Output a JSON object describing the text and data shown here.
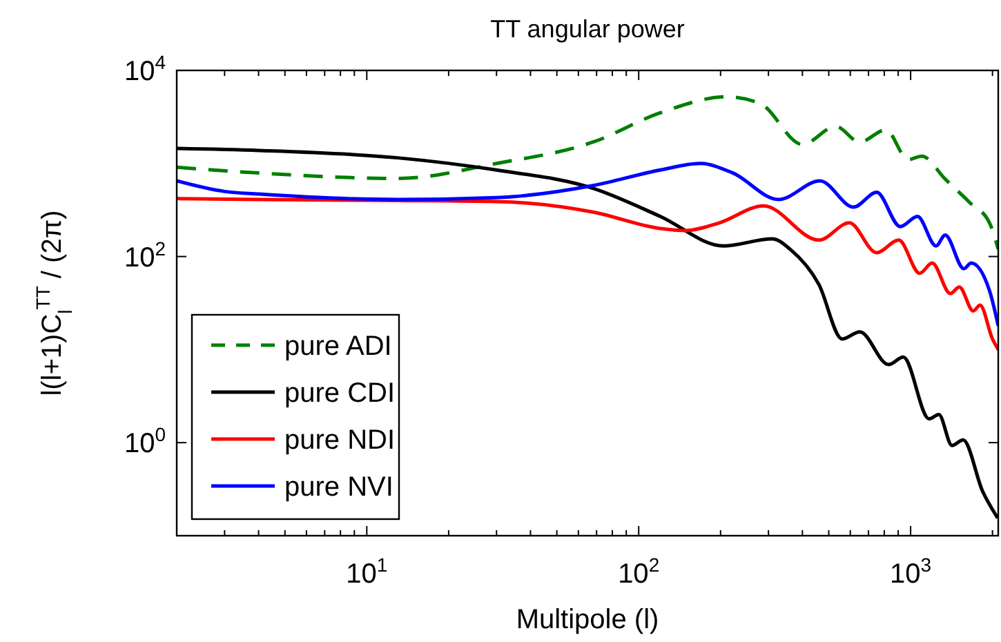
{
  "chart_data": {
    "type": "line",
    "title": "TT angular power",
    "xlabel": "Multipole (l)",
    "ylabel": "l(l+1)C$_{l}$$^{TT}$ / (2π)",
    "log": "xy",
    "grid": false,
    "legend": "bottom left",
    "marker": "none",
    "xlim": [
      2,
      2100
    ],
    "ylim": [
      0.1,
      10000
    ],
    "xticks": [
      {
        "value": 3,
        "label": null
      },
      {
        "value": 4,
        "label": null
      },
      {
        "value": 5,
        "label": null
      },
      {
        "value": 6,
        "label": null
      },
      {
        "value": 7,
        "label": null
      },
      {
        "value": 8,
        "label": null
      },
      {
        "value": 9,
        "label": null
      },
      {
        "value": 10,
        "label": "10$^{1}$"
      },
      {
        "value": 20,
        "label": null
      },
      {
        "value": 30,
        "label": null
      },
      {
        "value": 40,
        "label": null
      },
      {
        "value": 50,
        "label": null
      },
      {
        "value": 60,
        "label": null
      },
      {
        "value": 70,
        "label": null
      },
      {
        "value": 80,
        "label": null
      },
      {
        "value": 90,
        "label": null
      },
      {
        "value": 100,
        "label": "10$^{2}$"
      },
      {
        "value": 200,
        "label": null
      },
      {
        "value": 300,
        "label": null
      },
      {
        "value": 400,
        "label": null
      },
      {
        "value": 500,
        "label": null
      },
      {
        "value": 600,
        "label": null
      },
      {
        "value": 700,
        "label": null
      },
      {
        "value": 800,
        "label": null
      },
      {
        "value": 900,
        "label": null
      },
      {
        "value": 1000,
        "label": "10$^{3}$"
      },
      {
        "value": 2000,
        "label": null
      }
    ],
    "yticks": [
      {
        "value": 1,
        "label": "10$^{0}$"
      },
      {
        "value": 100,
        "label": "10$^{2}$"
      },
      {
        "value": 10000,
        "label": "10$^{4}$"
      }
    ],
    "series": [
      {
        "name": "pure ADI",
        "color": "#007f00",
        "line_style": "dashed",
        "x": [
          2,
          4,
          13,
          30,
          68,
          120,
          210,
          280,
          400,
          530,
          650,
          810,
          980,
          1100,
          1340,
          1650,
          1950,
          2100
        ],
        "values": [
          910,
          790,
          690,
          1000,
          1700,
          3500,
          5200,
          4400,
          1600,
          2500,
          1700,
          2300,
          1100,
          1200,
          680,
          380,
          230,
          120
        ]
      },
      {
        "name": "pure CDI",
        "color": "#000000",
        "x": [
          2,
          4,
          13,
          30,
          68,
          120,
          205,
          310,
          360,
          460,
          560,
          650,
          830,
          940,
          1170,
          1270,
          1420,
          1560,
          1840,
          2090
        ],
        "values": [
          1450,
          1380,
          1150,
          850,
          540,
          270,
          130,
          155,
          120,
          50,
          13,
          15.5,
          6.9,
          8.3,
          1.8,
          2.0,
          0.93,
          1.07,
          0.3,
          0.155
        ]
      },
      {
        "name": "pure NDI",
        "color": "#ff0000",
        "x": [
          2,
          4,
          13,
          30,
          68,
          120,
          148,
          198,
          288,
          460,
          595,
          750,
          905,
          1080,
          1200,
          1400,
          1510,
          1700,
          1800,
          2000,
          2100
        ],
        "values": [
          420,
          410,
          400,
          390,
          300,
          200,
          190,
          230,
          350,
          150,
          230,
          110,
          150,
          66,
          85,
          40,
          47,
          26,
          30,
          13,
          10
        ]
      },
      {
        "name": "pure NVI",
        "color": "#0000ff",
        "x": [
          2,
          3,
          4,
          13,
          30,
          68,
          120,
          168,
          222,
          327,
          464,
          617,
          750,
          916,
          1060,
          1240,
          1340,
          1570,
          1670,
          1950,
          2100
        ],
        "values": [
          650,
          500,
          470,
          410,
          430,
          580,
          850,
          1000,
          790,
          410,
          650,
          340,
          490,
          210,
          270,
          130,
          170,
          74,
          85,
          43,
          18
        ]
      }
    ]
  }
}
